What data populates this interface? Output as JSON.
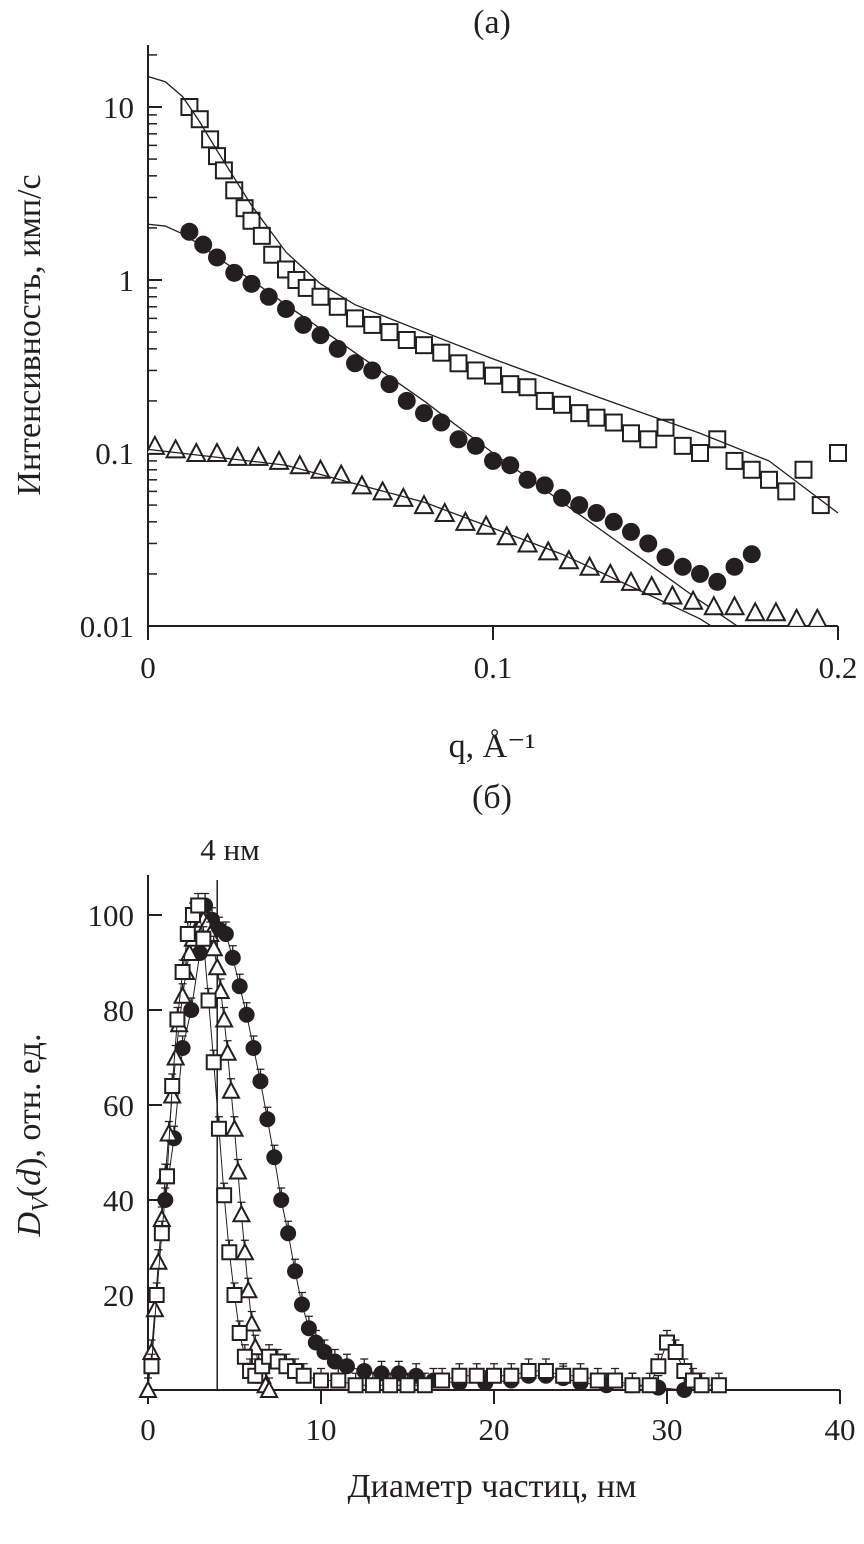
{
  "chart_data": [
    {
      "panel_label": "(a)",
      "type": "scatter",
      "xlabel": "q, Å⁻¹",
      "ylabel": "Интенсивность, имп/с",
      "x_scale": "linear",
      "y_scale": "log",
      "xlim": [
        0,
        0.2
      ],
      "ylim": [
        0.01,
        22
      ],
      "x_ticks": [
        "0",
        "0.1",
        "0.2"
      ],
      "y_ticks": [
        "0.01",
        "0.1",
        "1",
        "10"
      ],
      "grid": false,
      "series": [
        {
          "marker": "open-square",
          "x": [
            0.012,
            0.015,
            0.018,
            0.02,
            0.022,
            0.025,
            0.028,
            0.03,
            0.033,
            0.036,
            0.04,
            0.043,
            0.046,
            0.05,
            0.055,
            0.06,
            0.065,
            0.07,
            0.075,
            0.08,
            0.085,
            0.09,
            0.095,
            0.1,
            0.105,
            0.11,
            0.115,
            0.12,
            0.125,
            0.13,
            0.135,
            0.14,
            0.145,
            0.15,
            0.155,
            0.16,
            0.165,
            0.17,
            0.175,
            0.18,
            0.185,
            0.19,
            0.195,
            0.2
          ],
          "y": [
            10,
            8.5,
            6.5,
            5.2,
            4.3,
            3.3,
            2.6,
            2.2,
            1.8,
            1.4,
            1.15,
            1.0,
            0.9,
            0.8,
            0.7,
            0.6,
            0.55,
            0.5,
            0.45,
            0.42,
            0.38,
            0.33,
            0.3,
            0.28,
            0.25,
            0.24,
            0.2,
            0.19,
            0.17,
            0.16,
            0.15,
            0.13,
            0.12,
            0.14,
            0.11,
            0.1,
            0.12,
            0.09,
            0.08,
            0.07,
            0.06,
            0.08,
            0.05,
            0.1
          ],
          "fit": {
            "x": [
              0,
              0.005,
              0.01,
              0.015,
              0.02,
              0.03,
              0.04,
              0.05,
              0.06,
              0.08,
              0.1,
              0.12,
              0.14,
              0.16,
              0.18,
              0.2
            ],
            "y": [
              15,
              14,
              11.5,
              8.2,
              5.6,
              2.7,
              1.45,
              0.95,
              0.72,
              0.5,
              0.35,
              0.25,
              0.18,
              0.13,
              0.09,
              0.045
            ]
          }
        },
        {
          "marker": "filled-circle",
          "x": [
            0.012,
            0.016,
            0.02,
            0.025,
            0.03,
            0.035,
            0.04,
            0.045,
            0.05,
            0.055,
            0.06,
            0.065,
            0.07,
            0.075,
            0.08,
            0.085,
            0.09,
            0.095,
            0.1,
            0.105,
            0.11,
            0.115,
            0.12,
            0.125,
            0.13,
            0.135,
            0.14,
            0.145,
            0.15,
            0.155,
            0.16,
            0.165,
            0.17,
            0.175
          ],
          "y": [
            1.9,
            1.6,
            1.35,
            1.1,
            0.95,
            0.8,
            0.68,
            0.55,
            0.48,
            0.4,
            0.33,
            0.3,
            0.25,
            0.2,
            0.17,
            0.15,
            0.12,
            0.11,
            0.09,
            0.085,
            0.07,
            0.065,
            0.055,
            0.05,
            0.045,
            0.04,
            0.035,
            0.03,
            0.025,
            0.022,
            0.02,
            0.018,
            0.022,
            0.026
          ],
          "fit": {
            "x": [
              0,
              0.005,
              0.01,
              0.015,
              0.02,
              0.03,
              0.04,
              0.06,
              0.08,
              0.1,
              0.12,
              0.14,
              0.16,
              0.18
            ],
            "y": [
              2.1,
              2.05,
              1.85,
              1.6,
              1.35,
              1.0,
              0.72,
              0.38,
              0.2,
              0.1,
              0.052,
              0.027,
              0.014,
              0.0075
            ]
          }
        },
        {
          "marker": "open-triangle",
          "x": [
            0.002,
            0.008,
            0.014,
            0.02,
            0.026,
            0.032,
            0.038,
            0.044,
            0.05,
            0.056,
            0.062,
            0.068,
            0.074,
            0.08,
            0.086,
            0.092,
            0.098,
            0.104,
            0.11,
            0.116,
            0.122,
            0.128,
            0.134,
            0.14,
            0.146,
            0.152,
            0.158,
            0.164,
            0.17,
            0.176,
            0.182,
            0.188,
            0.194
          ],
          "y": [
            0.11,
            0.105,
            0.1,
            0.1,
            0.095,
            0.095,
            0.09,
            0.085,
            0.08,
            0.075,
            0.065,
            0.06,
            0.055,
            0.05,
            0.045,
            0.04,
            0.038,
            0.033,
            0.03,
            0.027,
            0.024,
            0.022,
            0.02,
            0.018,
            0.017,
            0.015,
            0.014,
            0.013,
            0.013,
            0.012,
            0.012,
            0.011,
            0.011
          ],
          "fit": {
            "x": [
              0,
              0.04,
              0.08,
              0.12,
              0.16,
              0.165
            ],
            "y": [
              0.105,
              0.085,
              0.052,
              0.026,
              0.011,
              0.0095
            ]
          }
        }
      ]
    },
    {
      "panel_label": "(б)",
      "type": "scatter",
      "xlabel": "Диаметр частиц, нм",
      "ylabel": "D_V(d), отн. ед.",
      "xlim": [
        0,
        40
      ],
      "ylim": [
        0,
        108
      ],
      "x_ticks": [
        "0",
        "10",
        "20",
        "30",
        "40"
      ],
      "y_ticks": [
        "20",
        "40",
        "60",
        "80",
        "100"
      ],
      "grid": false,
      "annotation": {
        "text": "4 нм",
        "x": 4
      },
      "series": [
        {
          "marker": "open-square",
          "x": [
            0.2,
            0.5,
            0.8,
            1.1,
            1.4,
            1.7,
            2.0,
            2.3,
            2.6,
            2.9,
            3.2,
            3.5,
            3.8,
            4.1,
            4.4,
            4.7,
            5.0,
            5.3,
            5.6,
            5.9,
            6.2,
            6.6,
            7.0,
            7.5,
            8.0,
            8.5,
            9.0,
            10,
            11,
            12,
            13,
            14,
            15,
            16,
            17,
            18,
            19,
            20,
            21,
            22,
            23,
            24,
            25,
            26,
            27,
            28,
            29,
            29.5,
            30,
            30.5,
            31,
            31.5,
            32,
            33
          ],
          "y": [
            5,
            20,
            33,
            45,
            64,
            78,
            88,
            96,
            100,
            102,
            95,
            82,
            69,
            55,
            41,
            29,
            20,
            12,
            7,
            4,
            3,
            5,
            7,
            6,
            5,
            4,
            3,
            2,
            2,
            1,
            1,
            1,
            1,
            1,
            2,
            3,
            3,
            3,
            3,
            4,
            4,
            3,
            3,
            2,
            2,
            1,
            1,
            5,
            10,
            8,
            4,
            2,
            1,
            1
          ]
        },
        {
          "marker": "open-triangle",
          "x": [
            0,
            0.2,
            0.4,
            0.6,
            0.8,
            1.0,
            1.2,
            1.4,
            1.6,
            1.8,
            2.0,
            2.2,
            2.4,
            2.6,
            2.8,
            3.0,
            3.2,
            3.4,
            3.6,
            3.8,
            4.0,
            4.2,
            4.4,
            4.6,
            4.8,
            5.0,
            5.2,
            5.4,
            5.6,
            5.8,
            6.0,
            6.2,
            6.4,
            6.6,
            6.8,
            7.0
          ],
          "y": [
            0,
            8,
            17,
            27,
            36,
            45,
            54,
            62,
            70,
            77,
            83,
            88,
            92,
            95,
            97,
            98,
            99,
            98,
            96,
            93,
            89,
            84,
            78,
            71,
            63,
            55,
            46,
            37,
            29,
            21,
            14,
            9,
            5,
            3,
            1,
            0
          ]
        },
        {
          "marker": "filled-circle",
          "x": [
            1.0,
            1.5,
            2.0,
            2.5,
            3.0,
            3.3,
            3.7,
            4.1,
            4.5,
            4.9,
            5.3,
            5.7,
            6.1,
            6.5,
            6.9,
            7.3,
            7.7,
            8.1,
            8.5,
            8.9,
            9.3,
            9.7,
            10.2,
            10.8,
            11.5,
            12.5,
            13.5,
            14.5,
            15.5,
            16.5,
            18,
            19.5,
            21,
            22,
            23,
            24,
            25,
            26.5,
            28,
            29.5,
            31
          ],
          "y": [
            40,
            53,
            72,
            80,
            92,
            102,
            99,
            97,
            96,
            91,
            85,
            79,
            72,
            65,
            57,
            49,
            40,
            33,
            25,
            18,
            13,
            10,
            8,
            6,
            5,
            4,
            3.5,
            3.5,
            3,
            2,
            1.5,
            1.5,
            2,
            3,
            3,
            2.5,
            1.5,
            1,
            1,
            0.5,
            0
          ]
        }
      ]
    }
  ]
}
